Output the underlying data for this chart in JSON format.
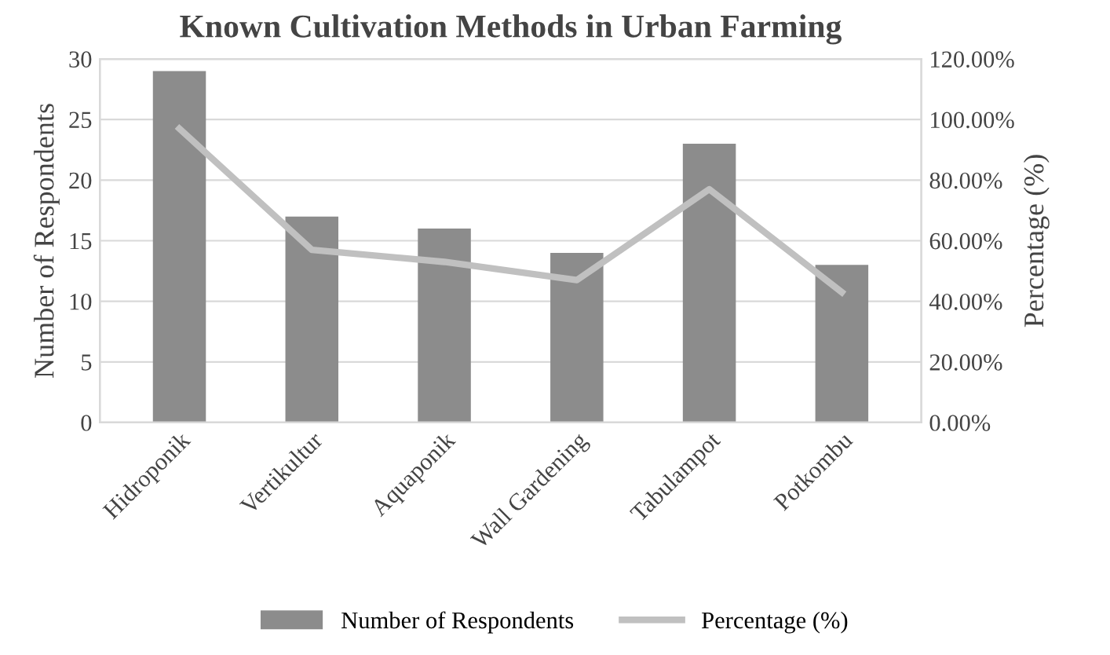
{
  "chart_data": {
    "type": "bar",
    "title": "Known Cultivation Methods in Urban Farming",
    "ylabel": "Number of Respondents",
    "y2label": "Percentage (%)",
    "categories": [
      "Hidroponik",
      "Vertikultur",
      "Aquaponik",
      "Wall Gardening",
      "Tabulampot",
      "Potkombu"
    ],
    "series": [
      {
        "name": "Number of Respondents",
        "color": "#8c8c8c",
        "values": [
          29,
          17,
          16,
          14,
          23,
          13
        ]
      },
      {
        "name": "Percentage (%)",
        "type": "line",
        "axis": "y2",
        "color": "#c0c0c0",
        "values": [
          97,
          57,
          53,
          47,
          77,
          43
        ]
      }
    ],
    "ylim": [
      0,
      30
    ],
    "yticks": [
      0,
      5,
      10,
      15,
      20,
      25,
      30
    ],
    "y2lim": [
      0,
      120
    ],
    "y2ticks": [
      {
        "value": 0,
        "label": "0.00%"
      },
      {
        "value": 20,
        "label": "20.00%"
      },
      {
        "value": 40,
        "label": "40.00%"
      },
      {
        "value": 60,
        "label": "60.00%"
      },
      {
        "value": 80,
        "label": "80.00%"
      },
      {
        "value": 100,
        "label": "100.00%"
      },
      {
        "value": 120,
        "label": "120.00%"
      }
    ],
    "grid": "y",
    "legend": "bottom",
    "marker": "none"
  }
}
